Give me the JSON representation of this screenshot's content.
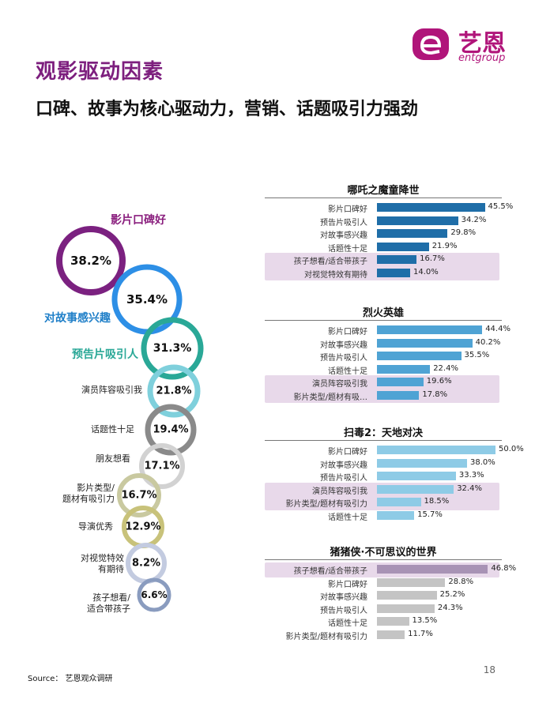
{
  "header": {
    "title": "观影驱动因素",
    "subtitle": "口碑、故事为核心驱动力，营销、话题吸引力强劲"
  },
  "logo": {
    "brand_cn": "艺恩",
    "brand_en": "entgroup",
    "accent_color": "#b0157a"
  },
  "rings": [
    {
      "label": "影片口碑好",
      "value": "38.2%",
      "color": "#7b2180",
      "label_color": "#8a1f7e"
    },
    {
      "label": "对故事感兴趣",
      "value": "35.4%",
      "color": "#2d8fe6",
      "label_color": "#1f7fc8"
    },
    {
      "label": "预告片吸引人",
      "value": "31.3%",
      "color": "#2aa897",
      "label_color": "#2aa897"
    },
    {
      "label": "演员阵容吸引我",
      "value": "21.8%",
      "color": "#7fd0dc",
      "label_color": "#222222"
    },
    {
      "label": "话题性十足",
      "value": "19.4%",
      "color": "#8a8a8a",
      "label_color": "#222222"
    },
    {
      "label": "朋友想看",
      "value": "17.1%",
      "color": "#d2d2d2",
      "label_color": "#222222"
    },
    {
      "label": "影片类型/题材有吸引力",
      "value": "16.7%",
      "color": "#c9c9a0",
      "label_color": "#222222"
    },
    {
      "label": "导演优秀",
      "value": "12.9%",
      "color": "#c8c27a",
      "label_color": "#222222"
    },
    {
      "label": "对视觉特效有期待",
      "value": "8.2%",
      "color": "#c3cbe0",
      "label_color": "#222222"
    },
    {
      "label": "孩子想看/适合带孩子",
      "value": "6.6%",
      "color": "#8a9cbf",
      "label_color": "#222222"
    }
  ],
  "panels": [
    {
      "title": "哪吒之魔童降世",
      "color": "#1f6ea8",
      "rows": [
        {
          "label": "影片口碑好",
          "value": 45.5,
          "text": "45.5%",
          "highlight": false
        },
        {
          "label": "预告片吸引人",
          "value": 34.2,
          "text": "34.2%",
          "highlight": false
        },
        {
          "label": "对故事感兴趣",
          "value": 29.8,
          "text": "29.8%",
          "highlight": false
        },
        {
          "label": "话题性十足",
          "value": 21.9,
          "text": "21.9%",
          "highlight": false
        },
        {
          "label": "孩子想看/适合带孩子",
          "value": 16.7,
          "text": "16.7%",
          "highlight": true
        },
        {
          "label": "对视觉特效有期待",
          "value": 14.0,
          "text": "14.0%",
          "highlight": true
        }
      ]
    },
    {
      "title": "烈火英雄",
      "color": "#4fa3d4",
      "rows": [
        {
          "label": "影片口碑好",
          "value": 44.4,
          "text": "44.4%",
          "highlight": false
        },
        {
          "label": "对故事感兴趣",
          "value": 40.2,
          "text": "40.2%",
          "highlight": false
        },
        {
          "label": "预告片吸引人",
          "value": 35.5,
          "text": "35.5%",
          "highlight": false
        },
        {
          "label": "话题性十足",
          "value": 22.4,
          "text": "22.4%",
          "highlight": false
        },
        {
          "label": "演员阵容吸引我",
          "value": 19.6,
          "text": "19.6%",
          "highlight": true
        },
        {
          "label": "影片类型/题材有吸…",
          "value": 17.8,
          "text": "17.8%",
          "highlight": true
        }
      ]
    },
    {
      "title": "扫毒2：天地对决",
      "color": "#8ecbe6",
      "rows": [
        {
          "label": "影片口碑好",
          "value": 50.0,
          "text": "50.0%",
          "highlight": false
        },
        {
          "label": "对故事感兴趣",
          "value": 38.0,
          "text": "38.0%",
          "highlight": false
        },
        {
          "label": "预告片吸引人",
          "value": 33.3,
          "text": "33.3%",
          "highlight": false
        },
        {
          "label": "演员阵容吸引我",
          "value": 32.4,
          "text": "32.4%",
          "highlight": true
        },
        {
          "label": "影片类型/题材有吸引力",
          "value": 18.5,
          "text": "18.5%",
          "highlight": true
        },
        {
          "label": "话题性十足",
          "value": 15.7,
          "text": "15.7%",
          "highlight": false
        }
      ]
    },
    {
      "title": "猪猪侠·不可思议的世界",
      "color": "#c4c4c4",
      "rows": [
        {
          "label": "孩子想看/适合带孩子",
          "value": 46.8,
          "text": "46.8%",
          "highlight": true
        },
        {
          "label": "影片口碑好",
          "value": 28.8,
          "text": "28.8%",
          "highlight": false
        },
        {
          "label": "对故事感兴趣",
          "value": 25.2,
          "text": "25.2%",
          "highlight": false
        },
        {
          "label": "预告片吸引人",
          "value": 24.3,
          "text": "24.3%",
          "highlight": false
        },
        {
          "label": "话题性十足",
          "value": 13.5,
          "text": "13.5%",
          "highlight": false
        },
        {
          "label": "影片类型/题材有吸引力",
          "value": 11.7,
          "text": "11.7%",
          "highlight": false
        }
      ]
    }
  ],
  "footer": {
    "source": "Source： 艺恩观众调研",
    "page_number": "18"
  }
}
